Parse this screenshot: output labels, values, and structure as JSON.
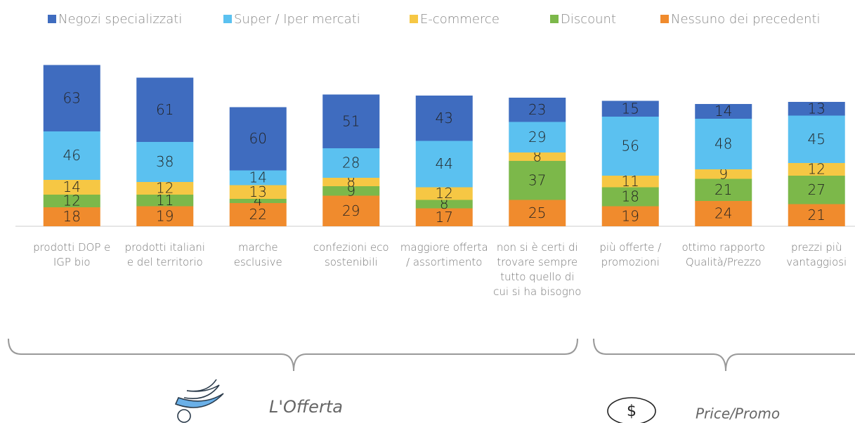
{
  "chart_data": {
    "type": "stacked-bar",
    "categories": [
      "prodotti DOP e IGP bio",
      "prodotti italiani e del territorio",
      "marche esclusive",
      "confezioni eco sostenibili",
      "maggiore offerta / assortimento",
      "non si è certi di trovare sempre tutto quello di cui si ha bisogno",
      "più offerte / promozioni",
      "ottimo rapporto Qualità/Prezzo",
      "prezzi più vantaggiosi"
    ],
    "series": [
      {
        "name": "Negozi specializzati",
        "color": "#3f6cbf",
        "values": [
          63,
          61,
          60,
          51,
          43,
          23,
          15,
          14,
          13
        ]
      },
      {
        "name": "Super / Iper mercati",
        "color": "#5bc1f0",
        "values": [
          46,
          38,
          14,
          28,
          44,
          29,
          56,
          48,
          45
        ]
      },
      {
        "name": "E-commerce",
        "color": "#f6c744",
        "values": [
          14,
          12,
          13,
          8,
          12,
          8,
          11,
          9,
          12
        ]
      },
      {
        "name": "Discount",
        "color": "#7cb84a",
        "values": [
          12,
          11,
          4,
          9,
          8,
          37,
          18,
          21,
          27
        ]
      },
      {
        "name": "Nessuno dei precedenti",
        "color": "#f08b2d",
        "values": [
          18,
          19,
          22,
          29,
          17,
          25,
          19,
          24,
          21
        ]
      }
    ],
    "legend": "top",
    "annotations": [
      "L'Offerta",
      "Price/Promo"
    ]
  }
}
